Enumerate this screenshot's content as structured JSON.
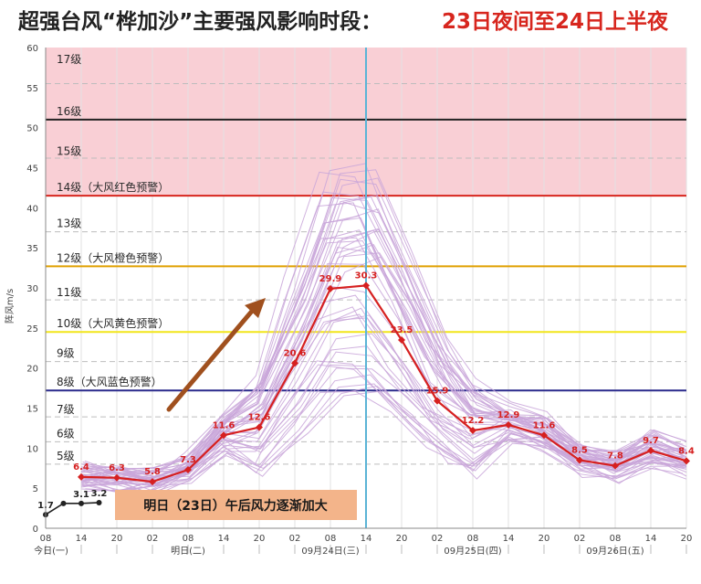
{
  "title": {
    "main": "超强台风“桦加沙”主要强风影响时段：",
    "highlight": "23日夜间至24日上半夜",
    "highlight_color": "#d7261e"
  },
  "chart_data": {
    "type": "line",
    "ylabel": "阵风m/s",
    "ylim": [
      0,
      60
    ],
    "y_ticks": [
      0,
      5,
      10,
      15,
      20,
      25,
      30,
      35,
      40,
      45,
      50,
      55,
      60
    ],
    "x_hour_ticks": [
      "08",
      "14",
      "20",
      "02",
      "08",
      "14",
      "20",
      "02",
      "08",
      "14",
      "20",
      "02",
      "08",
      "14",
      "20",
      "02",
      "08",
      "14",
      "20"
    ],
    "x_day_labels": [
      {
        "label": "今日(一)",
        "index": 0
      },
      {
        "label": "明日(二)",
        "index": 4
      },
      {
        "label": "09月24日(三)",
        "index": 8
      },
      {
        "label": "09月25日(四)",
        "index": 12
      },
      {
        "label": "09月26日(五)",
        "index": 16
      }
    ],
    "observed": {
      "x_index": [
        0,
        0.5,
        1,
        1.5
      ],
      "values": [
        1.7,
        3.1,
        3.1,
        3.2
      ],
      "labels": [
        "1.7",
        "3.1",
        "3.2"
      ],
      "label_points": [
        0,
        2,
        3
      ],
      "color": "#222222"
    },
    "forecast": {
      "x_index": [
        1,
        2,
        3,
        4,
        5,
        6,
        7,
        8,
        9,
        10,
        11,
        12,
        13,
        14,
        15,
        16,
        17,
        18
      ],
      "values": [
        6.4,
        6.3,
        5.8,
        7.3,
        11.6,
        12.6,
        20.6,
        29.9,
        30.3,
        23.5,
        15.9,
        12.2,
        12.9,
        11.6,
        8.5,
        7.8,
        9.7,
        8.4
      ],
      "color": "#d62020"
    },
    "ensemble_color": "#c9a6d9",
    "ensemble_count": 45,
    "current_time_index": 9,
    "current_time_color": "#5bb4d6",
    "warning_zone": {
      "from": 41.5,
      "to": 60,
      "color": "#f9cfd5"
    },
    "levels": [
      {
        "value": 51,
        "label": "16级",
        "line_color": "#222222",
        "solid": true
      },
      {
        "value": 41.5,
        "label": "14级（大风红色预警）",
        "line_color": "#d7261e",
        "solid": true
      },
      {
        "value": 32.7,
        "label": "12级（大风橙色预警）",
        "line_color": "#e0a000",
        "solid": true
      },
      {
        "value": 24.5,
        "label": "10级（大风黄色预警）",
        "line_color": "#f2e51a",
        "solid": true
      },
      {
        "value": 17.2,
        "label": "8级（大风蓝色预警）",
        "line_color": "#2a2a8c",
        "solid": true
      }
    ],
    "level_labels": [
      {
        "value": 57.5,
        "label": "17级"
      },
      {
        "value": 51,
        "label": "16级"
      },
      {
        "value": 46,
        "label": "15级"
      },
      {
        "value": 41.5,
        "label": "14级（大风红色预警）"
      },
      {
        "value": 37,
        "label": "13级"
      },
      {
        "value": 32.7,
        "label": "12级（大风橙色预警）"
      },
      {
        "value": 28.4,
        "label": "11级"
      },
      {
        "value": 24.5,
        "label": "10级（大风黄色预警）"
      },
      {
        "value": 20.8,
        "label": "9级"
      },
      {
        "value": 17.2,
        "label": "8级（大风蓝色预警）"
      },
      {
        "value": 13.8,
        "label": "7级"
      },
      {
        "value": 10.8,
        "label": "6级"
      },
      {
        "value": 8.0,
        "label": "5级"
      }
    ],
    "dashed_levels": [
      55.5,
      46.2,
      37.0,
      28.5,
      20.8,
      13.9,
      10.8,
      8.0
    ],
    "annotation": {
      "text": "明日（23日）午后风力逐渐加大",
      "bg": "#f3b48a",
      "color": "#1a1a1a"
    },
    "arrow_color": "#a0501e"
  }
}
